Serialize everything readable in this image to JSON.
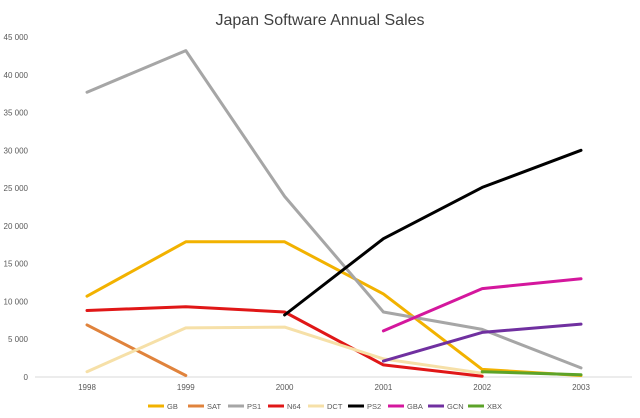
{
  "chart_data": {
    "type": "line",
    "title": "Japan Software Annual Sales",
    "xlabel": "",
    "ylabel": "",
    "categories": [
      "1998",
      "1999",
      "2000",
      "2001",
      "2002",
      "2003"
    ],
    "y_ticks": [
      "0",
      "5 000",
      "10 000",
      "15 000",
      "20 000",
      "25 000",
      "30 000",
      "35 000",
      "40 000",
      "45 000"
    ],
    "ylim": [
      0,
      45000
    ],
    "grid": false,
    "legend_position": "bottom",
    "series": [
      {
        "name": "GB",
        "color": "#f2b200",
        "values": [
          10700,
          17900,
          17900,
          11000,
          1000,
          200
        ]
      },
      {
        "name": "SAT",
        "color": "#e0833c",
        "values": [
          6900,
          200,
          null,
          null,
          null,
          null
        ]
      },
      {
        "name": "PS1",
        "color": "#a6a6a6",
        "values": [
          37700,
          43200,
          23900,
          8600,
          6300,
          1200
        ]
      },
      {
        "name": "N64",
        "color": "#e01717",
        "values": [
          8800,
          9300,
          8600,
          1600,
          100,
          null
        ]
      },
      {
        "name": "DCT",
        "color": "#f6e0a8",
        "values": [
          700,
          6500,
          6600,
          2400,
          500,
          null
        ]
      },
      {
        "name": "PS2",
        "color": "#000000",
        "values": [
          null,
          null,
          8200,
          18300,
          25100,
          30000
        ]
      },
      {
        "name": "GBA",
        "color": "#d4179d",
        "values": [
          null,
          null,
          null,
          6100,
          11700,
          13000
        ]
      },
      {
        "name": "GCN",
        "color": "#7030a0",
        "values": [
          null,
          null,
          null,
          2100,
          5900,
          7000
        ]
      },
      {
        "name": "XBX",
        "color": "#5ca329",
        "values": [
          null,
          null,
          null,
          null,
          700,
          300
        ]
      }
    ]
  }
}
